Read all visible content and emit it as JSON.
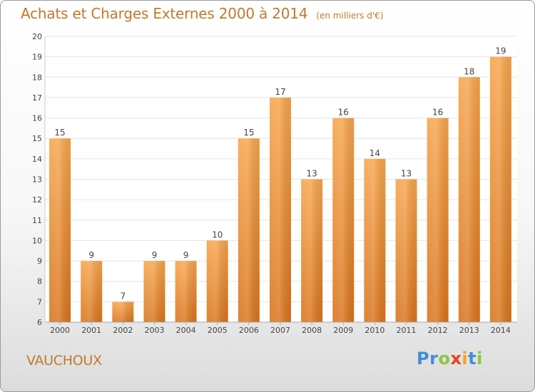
{
  "header": {
    "title": "Achats et Charges Externes 2000 à 2014",
    "subtitle": "(en milliers d'€)"
  },
  "footer": {
    "commune": "VAUCHOUX"
  },
  "brand": {
    "letters": [
      "P",
      "r",
      "o",
      "x",
      "i",
      "t",
      "i"
    ],
    "colors": [
      "#3f8ed8",
      "#3f8ed8",
      "#8cc63f",
      "#e8421c",
      "#f5a31a",
      "#3f8ed8",
      "#8cc63f"
    ]
  },
  "colors": {
    "bar_light": "#f7a54c",
    "bar_dark": "#d9741b",
    "text": "#444444",
    "grid": "#e4e4e4"
  },
  "chart_data": {
    "type": "bar",
    "title": "Achats et Charges Externes 2000 à 2014",
    "subtitle": "(en milliers d'€)",
    "categories": [
      "2000",
      "2001",
      "2002",
      "2003",
      "2004",
      "2005",
      "2006",
      "2007",
      "2008",
      "2009",
      "2010",
      "2011",
      "2012",
      "2013",
      "2014"
    ],
    "values": [
      15,
      9,
      7,
      9,
      9,
      10,
      15,
      17,
      13,
      16,
      14,
      13,
      16,
      18,
      19
    ],
    "ylim": [
      6,
      20
    ],
    "yticks": [
      6,
      7,
      8,
      9,
      10,
      11,
      12,
      13,
      14,
      15,
      16,
      17,
      18,
      19,
      20
    ],
    "data_labels": true,
    "grid": true
  }
}
